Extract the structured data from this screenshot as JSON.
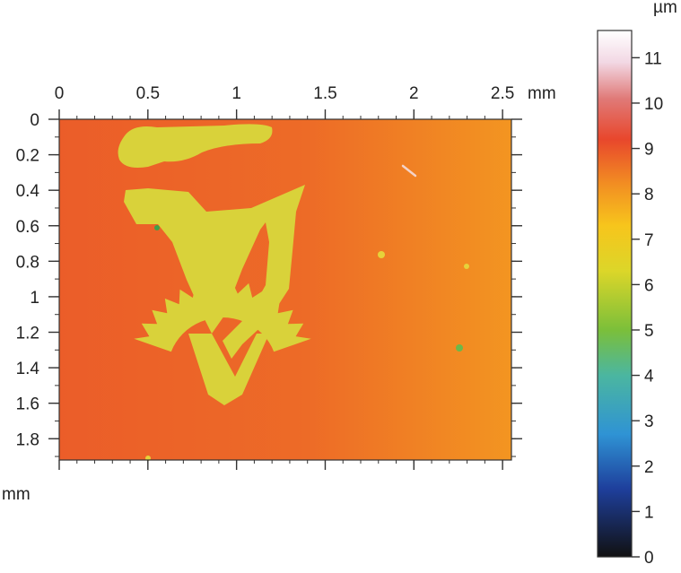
{
  "chart_data": {
    "type": "heatmap",
    "title": "",
    "x_axis": {
      "unit": "mm",
      "range": [
        0,
        2.55
      ],
      "major_ticks": [
        0,
        0.5,
        1,
        1.5,
        2,
        2.5
      ],
      "tick_labels": [
        "0",
        "0.5",
        "1",
        "1.5",
        "2",
        "2.5"
      ],
      "minor_step": 0.1,
      "position": "top"
    },
    "y_axis": {
      "unit": "mm",
      "range": [
        0,
        1.92
      ],
      "inverted": true,
      "major_ticks": [
        0,
        0.2,
        0.4,
        0.6,
        0.8,
        1,
        1.2,
        1.4,
        1.6,
        1.8
      ],
      "tick_labels": [
        "0",
        "0.2",
        "0.4",
        "0.6",
        "0.8",
        "1",
        "1.2",
        "1.4",
        "1.6",
        "1.8"
      ],
      "minor_step": 0.1
    },
    "colorbar": {
      "unit": "µm",
      "range": [
        0,
        11.6
      ],
      "ticks": [
        0,
        1,
        2,
        3,
        4,
        5,
        6,
        7,
        8,
        9,
        10,
        11
      ],
      "tick_labels": [
        "0",
        "1",
        "2",
        "3",
        "4",
        "5",
        "6",
        "7",
        "8",
        "9",
        "10",
        "11"
      ],
      "colormap": [
        {
          "v": 0,
          "c": "#111111"
        },
        {
          "v": 1.5,
          "c": "#1e3f9c"
        },
        {
          "v": 2.7,
          "c": "#2f93d4"
        },
        {
          "v": 4.0,
          "c": "#4bb6a0"
        },
        {
          "v": 5.0,
          "c": "#7bbf3a"
        },
        {
          "v": 6.3,
          "c": "#dcd629"
        },
        {
          "v": 7.3,
          "c": "#f7c51c"
        },
        {
          "v": 8.2,
          "c": "#f28f22"
        },
        {
          "v": 9.2,
          "c": "#e8472c"
        },
        {
          "v": 10.1,
          "c": "#e07a78"
        },
        {
          "v": 10.9,
          "c": "#f2d8e4"
        },
        {
          "v": 11.6,
          "c": "#ffffff"
        }
      ]
    },
    "surface": {
      "background_height_left": 8.9,
      "background_height_right": 8.1,
      "emblem_height": 6.6,
      "emblem_color": "#e3d32c",
      "emblem_fill": "#d9d23a"
    },
    "grid": false,
    "legend": "colorbar-right"
  }
}
